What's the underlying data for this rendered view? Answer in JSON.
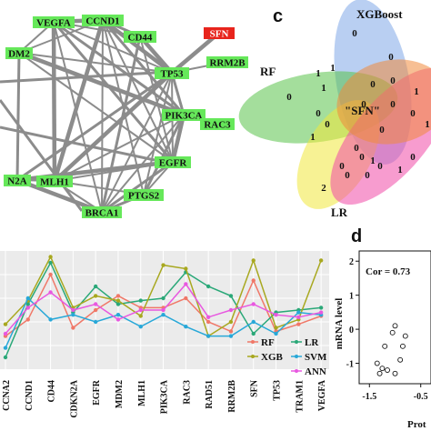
{
  "network": {
    "nodes": [
      {
        "id": "VEGFA",
        "label": "VEGFA"
      },
      {
        "id": "CCND1",
        "label": "CCND1"
      },
      {
        "id": "MDM2",
        "label": "DM2"
      },
      {
        "id": "CD44",
        "label": "CD44"
      },
      {
        "id": "SFN",
        "label": "SFN"
      },
      {
        "id": "RRM2B",
        "label": "RRM2B"
      },
      {
        "id": "TP53",
        "label": "TP53"
      },
      {
        "id": "PIK3CA",
        "label": "PIK3CA"
      },
      {
        "id": "RAC3",
        "label": "RAC3"
      },
      {
        "id": "EGFR",
        "label": "EGFR"
      },
      {
        "id": "CDKN2A",
        "label": "N2A"
      },
      {
        "id": "MLH1",
        "label": "MLH1"
      },
      {
        "id": "PTGS2",
        "label": "PTGS2"
      },
      {
        "id": "BRCA1",
        "label": "BRCA1"
      }
    ],
    "edges": [
      [
        "VEGFA",
        "CCND1"
      ],
      [
        "VEGFA",
        "TP53"
      ],
      [
        "VEGFA",
        "CD44"
      ],
      [
        "VEGFA",
        "EGFR"
      ],
      [
        "VEGFA",
        "MLH1"
      ],
      [
        "VEGFA",
        "BRCA1"
      ],
      [
        "VEGFA",
        "PIK3CA"
      ],
      [
        "VEGFA",
        "MDM2"
      ],
      [
        "CCND1",
        "TP53"
      ],
      [
        "CCND1",
        "CD44"
      ],
      [
        "CCND1",
        "EGFR"
      ],
      [
        "CCND1",
        "BRCA1"
      ],
      [
        "CCND1",
        "MLH1"
      ],
      [
        "CCND1",
        "PTGS2"
      ],
      [
        "CCND1",
        "MDM2"
      ],
      [
        "CCND1",
        "PIK3CA"
      ],
      [
        "CD44",
        "TP53"
      ],
      [
        "CD44",
        "EGFR"
      ],
      [
        "CD44",
        "BRCA1"
      ],
      [
        "TP53",
        "RRM2B"
      ],
      [
        "TP53",
        "SFN"
      ],
      [
        "TP53",
        "PIK3CA"
      ],
      [
        "TP53",
        "EGFR"
      ],
      [
        "TP53",
        "BRCA1"
      ],
      [
        "TP53",
        "MLH1"
      ],
      [
        "TP53",
        "PTGS2"
      ],
      [
        "TP53",
        "MDM2"
      ],
      [
        "TP53",
        "CDKN2A"
      ],
      [
        "PIK3CA",
        "EGFR"
      ],
      [
        "PIK3CA",
        "BRCA1"
      ],
      [
        "PIK3CA",
        "PTGS2"
      ],
      [
        "PIK3CA",
        "MLH1"
      ],
      [
        "PIK3CA",
        "MDM2"
      ],
      [
        "EGFR",
        "BRCA1"
      ],
      [
        "EGFR",
        "PTGS2"
      ],
      [
        "EGFR",
        "MLH1"
      ],
      [
        "EGFR",
        "CDKN2A"
      ],
      [
        "EGFR",
        "MDM2"
      ],
      [
        "BRCA1",
        "MLH1"
      ],
      [
        "BRCA1",
        "PTGS2"
      ],
      [
        "BRCA1",
        "CDKN2A"
      ],
      [
        "MLH1",
        "CDKN2A"
      ],
      [
        "MDM2",
        "CDKN2A"
      ],
      [
        "PTGS2",
        "MLH1"
      ]
    ],
    "colors": {
      "node": "#66e85a",
      "highlight": "#e8241c",
      "edge": "#8c8c8c"
    }
  },
  "venn": {
    "panel_letter": "c",
    "sets": [
      "XGBoost",
      "RF",
      "LR"
    ],
    "center_label": "\"SFN\"",
    "region_values": [
      "0",
      "1",
      "0",
      "1",
      "0",
      "1",
      "0",
      "0",
      "0",
      "1",
      "0",
      "0",
      "1",
      "0",
      "0",
      "1",
      "0",
      "0",
      "0",
      "0",
      "1",
      "0",
      "1",
      "2",
      "0",
      "0",
      "0"
    ],
    "colors": [
      "#7fa8e8",
      "#59c24a",
      "#f0e83c",
      "#f04aa8",
      "#f08a3c",
      "#e0483a"
    ]
  },
  "chart_b": {
    "chart_data": {
      "type": "line",
      "categories": [
        "CCNA2",
        "CCND1",
        "CD44",
        "CDKN2A",
        "EGFR",
        "MDM2",
        "MLH1",
        "PIK3CA",
        "RAC3",
        "RAD51",
        "RRM2B",
        "SFN",
        "TP53",
        "TRAM1",
        "VEGFA"
      ],
      "tick_labels": [
        "CCNA2",
        "CCND1",
        "CD44",
        "CDKN2A",
        "EGFR",
        "MDM2",
        "MLH1",
        "PIK3CA",
        "RAC3",
        "RAD51",
        "RRM2B",
        "SFN",
        "TP53",
        "TRAM1",
        "VEGFA"
      ],
      "series": [
        {
          "name": "RF",
          "color": "#f07868",
          "values": [
            0.28,
            0.42,
            0.8,
            0.35,
            0.5,
            0.62,
            0.52,
            0.52,
            0.6,
            0.4,
            0.32,
            0.75,
            0.32,
            0.38,
            0.45
          ]
        },
        {
          "name": "LR",
          "color": "#2aa878",
          "values": [
            0.1,
            0.55,
            0.9,
            0.48,
            0.7,
            0.55,
            0.58,
            0.6,
            0.82,
            0.7,
            0.62,
            0.3,
            0.48,
            0.5,
            0.52
          ]
        },
        {
          "name": "XGB",
          "color": "#a8a820",
          "values": [
            0.38,
            0.58,
            0.95,
            0.52,
            0.62,
            0.58,
            0.45,
            0.88,
            0.85,
            0.28,
            0.4,
            0.92,
            0.35,
            0.42,
            0.92
          ]
        },
        {
          "name": "SVM",
          "color": "#28a8d8",
          "values": [
            0.18,
            0.6,
            0.42,
            0.46,
            0.4,
            0.46,
            0.36,
            0.46,
            0.36,
            0.28,
            0.28,
            0.4,
            0.3,
            0.48,
            0.46
          ]
        },
        {
          "name": "ANN",
          "color": "#e858e0",
          "values": [
            0.3,
            0.52,
            0.65,
            0.5,
            0.55,
            0.42,
            0.5,
            0.5,
            0.72,
            0.44,
            0.5,
            0.55,
            0.46,
            0.44,
            0.48
          ]
        }
      ],
      "ylim": [
        0,
        1
      ],
      "grid": true,
      "legend_placement": "bottom-right"
    }
  },
  "chart_d": {
    "panel_letter": "d",
    "chart_data": {
      "type": "scatter",
      "x": [
        -1.35,
        -1.3,
        -1.2,
        -1.15,
        -1.05,
        -1.0,
        -1.0,
        -0.9,
        -0.85,
        -0.8,
        -1.25
      ],
      "y": [
        -1.0,
        -1.3,
        -0.5,
        -1.2,
        -0.1,
        0.1,
        -1.3,
        -0.9,
        -0.5,
        -0.2,
        -1.15
      ],
      "xlim": [
        -1.7,
        -0.3
      ],
      "ylim": [
        -1.6,
        2.3
      ],
      "xlabel": "Prot",
      "ylabel": "mRNA level",
      "xticks": [
        "-1.5",
        "-0.5"
      ],
      "yticks": [
        "2",
        "1",
        "0",
        "-1"
      ],
      "annotation": "Cor = 0.73"
    }
  }
}
